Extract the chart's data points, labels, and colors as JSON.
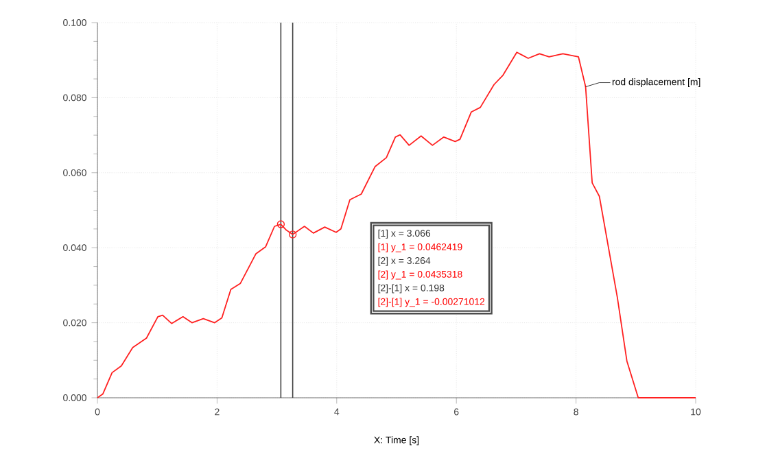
{
  "chart_data": {
    "type": "line",
    "xlabel": "X: Time [s]",
    "xlim": [
      0,
      10
    ],
    "xticks": [
      0,
      2,
      4,
      6,
      8,
      10
    ],
    "ylim": [
      0,
      0.1
    ],
    "yticks": [
      {
        "value": 0,
        "label": "0.000"
      },
      {
        "value": 0.02,
        "label": "0.020"
      },
      {
        "value": 0.04,
        "label": "0.040"
      },
      {
        "value": 0.06,
        "label": "0.060"
      },
      {
        "value": 0.08,
        "label": "0.080"
      },
      {
        "value": 0.1,
        "label": "0.100"
      }
    ],
    "grid": true,
    "series": [
      {
        "name": "rod displacement [m]",
        "color": "#ff2020",
        "x": [
          0,
          0.09,
          0.245,
          0.4,
          0.59,
          0.82,
          1.01,
          1.09,
          1.24,
          1.43,
          1.58,
          1.77,
          1.96,
          2.08,
          2.23,
          2.39,
          2.65,
          2.81,
          2.96,
          3.066,
          3.15,
          3.264,
          3.46,
          3.61,
          3.8,
          3.99,
          4.07,
          4.22,
          4.41,
          4.64,
          4.83,
          4.98,
          5.06,
          5.21,
          5.41,
          5.6,
          5.79,
          5.98,
          6.06,
          6.25,
          6.4,
          6.63,
          6.78,
          7.01,
          7.2,
          7.39,
          7.55,
          7.78,
          8.04,
          8.16,
          8.27,
          8.39,
          8.69,
          8.85,
          9.04,
          10
        ],
        "values": [
          0,
          0.001,
          0.0067,
          0.0085,
          0.0134,
          0.0159,
          0.0216,
          0.022,
          0.0198,
          0.0216,
          0.02,
          0.0211,
          0.02,
          0.0213,
          0.0289,
          0.0305,
          0.0384,
          0.0402,
          0.0457,
          0.0462419,
          0.0448,
          0.0435318,
          0.0457,
          0.0439,
          0.0455,
          0.0441,
          0.045,
          0.0528,
          0.0543,
          0.0616,
          0.064,
          0.0695,
          0.0701,
          0.0673,
          0.0698,
          0.0673,
          0.0695,
          0.0683,
          0.0689,
          0.0762,
          0.0774,
          0.0835,
          0.086,
          0.0921,
          0.0905,
          0.0917,
          0.0909,
          0.0917,
          0.0909,
          0.0829,
          0.0573,
          0.0537,
          0.0268,
          0.0098,
          0,
          0
        ]
      },
      {
        "type": "scatter",
        "marker": "circle",
        "color": "#ff2020",
        "x": [
          3.066,
          3.264
        ],
        "values": [
          0.0462419,
          0.0435318
        ]
      }
    ],
    "ref_lines": [
      {
        "axis": "x",
        "value": 3.066,
        "color": "#404040"
      },
      {
        "axis": "x",
        "value": 3.264,
        "color": "#404040"
      }
    ],
    "annotations": [
      "[1] x = 3.066",
      "[1] y_1 = 0.0462419",
      "[2] x = 3.264",
      "[2] y_1 = 0.0435318",
      "[2]-[1] x = 0.198",
      "[2]-[1] y_1 = -0.00271012"
    ]
  }
}
